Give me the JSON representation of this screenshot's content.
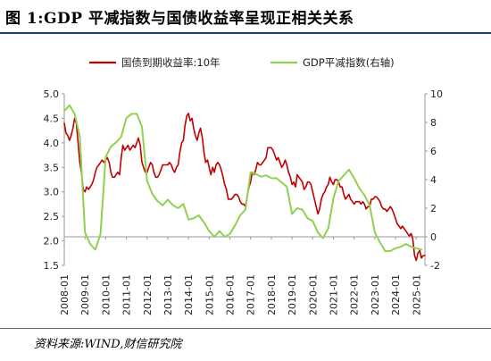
{
  "figure_title": "图 1:GDP 平减指数与国债收益率呈现正相关关系",
  "source_note": "资料来源:WIND,财信研究院",
  "colors": {
    "bond": "#c00000",
    "gdp": "#92d050",
    "rule": "#1f3b73"
  },
  "chart_data": {
    "type": "line",
    "title": "",
    "xlabel": "",
    "ylabel": "",
    "legend": {
      "placement": "top"
    },
    "grid": false,
    "x_ticks": [
      "2008-01",
      "2009-01",
      "2010-01",
      "2011-01",
      "2012-01",
      "2013-01",
      "2014-01",
      "2015-01",
      "2016-01",
      "2017-01",
      "2018-01",
      "2019-01",
      "2020-01",
      "2021-01",
      "2022-01",
      "2023-01",
      "2024-01",
      "2025-01"
    ],
    "y_left": {
      "range": [
        1.5,
        5.0
      ],
      "ticks": [
        "1.5",
        "2.0",
        "2.5",
        "3.0",
        "3.5",
        "4.0",
        "4.5",
        "5.0"
      ]
    },
    "y_right": {
      "range": [
        -2,
        10
      ],
      "ticks": [
        "-2",
        "0",
        "2",
        "4",
        "6",
        "8",
        "10"
      ]
    },
    "series": [
      {
        "name": "国债到期收益率:10年",
        "axis": "left",
        "color": "#c00000",
        "points": [
          [
            2008.0,
            4.4
          ],
          [
            2008.08,
            4.2
          ],
          [
            2008.17,
            4.15
          ],
          [
            2008.25,
            4.05
          ],
          [
            2008.33,
            4.15
          ],
          [
            2008.42,
            4.3
          ],
          [
            2008.5,
            4.5
          ],
          [
            2008.58,
            4.4
          ],
          [
            2008.67,
            4.0
          ],
          [
            2008.75,
            3.6
          ],
          [
            2008.83,
            3.4
          ],
          [
            2008.92,
            3.05
          ],
          [
            2009.0,
            3.0
          ],
          [
            2009.08,
            3.1
          ],
          [
            2009.17,
            3.05
          ],
          [
            2009.25,
            3.1
          ],
          [
            2009.33,
            3.15
          ],
          [
            2009.42,
            3.25
          ],
          [
            2009.5,
            3.4
          ],
          [
            2009.58,
            3.5
          ],
          [
            2009.67,
            3.55
          ],
          [
            2009.75,
            3.6
          ],
          [
            2009.83,
            3.65
          ],
          [
            2009.92,
            3.6
          ],
          [
            2010.0,
            3.65
          ],
          [
            2010.08,
            3.7
          ],
          [
            2010.17,
            3.6
          ],
          [
            2010.25,
            3.4
          ],
          [
            2010.33,
            3.3
          ],
          [
            2010.42,
            3.3
          ],
          [
            2010.5,
            3.35
          ],
          [
            2010.58,
            3.4
          ],
          [
            2010.67,
            3.35
          ],
          [
            2010.75,
            3.7
          ],
          [
            2010.83,
            3.95
          ],
          [
            2010.92,
            3.85
          ],
          [
            2011.0,
            3.9
          ],
          [
            2011.08,
            3.95
          ],
          [
            2011.17,
            3.85
          ],
          [
            2011.25,
            3.9
          ],
          [
            2011.33,
            3.95
          ],
          [
            2011.42,
            3.9
          ],
          [
            2011.5,
            4.0
          ],
          [
            2011.58,
            4.1
          ],
          [
            2011.67,
            3.95
          ],
          [
            2011.75,
            3.6
          ],
          [
            2011.83,
            3.5
          ],
          [
            2011.92,
            3.4
          ],
          [
            2012.0,
            3.4
          ],
          [
            2012.08,
            3.5
          ],
          [
            2012.17,
            3.6
          ],
          [
            2012.25,
            3.55
          ],
          [
            2012.33,
            3.4
          ],
          [
            2012.42,
            3.3
          ],
          [
            2012.5,
            3.3
          ],
          [
            2012.58,
            3.35
          ],
          [
            2012.67,
            3.45
          ],
          [
            2012.75,
            3.55
          ],
          [
            2012.83,
            3.55
          ],
          [
            2012.92,
            3.55
          ],
          [
            2013.0,
            3.55
          ],
          [
            2013.08,
            3.6
          ],
          [
            2013.17,
            3.55
          ],
          [
            2013.25,
            3.45
          ],
          [
            2013.33,
            3.4
          ],
          [
            2013.42,
            3.5
          ],
          [
            2013.5,
            3.55
          ],
          [
            2013.58,
            3.8
          ],
          [
            2013.67,
            4.0
          ],
          [
            2013.75,
            4.05
          ],
          [
            2013.83,
            4.35
          ],
          [
            2013.92,
            4.55
          ],
          [
            2014.0,
            4.6
          ],
          [
            2014.08,
            4.45
          ],
          [
            2014.17,
            4.5
          ],
          [
            2014.25,
            4.3
          ],
          [
            2014.33,
            4.15
          ],
          [
            2014.42,
            4.05
          ],
          [
            2014.5,
            4.2
          ],
          [
            2014.58,
            4.3
          ],
          [
            2014.67,
            4.1
          ],
          [
            2014.75,
            3.8
          ],
          [
            2014.83,
            3.6
          ],
          [
            2014.92,
            3.65
          ],
          [
            2015.0,
            3.5
          ],
          [
            2015.08,
            3.35
          ],
          [
            2015.17,
            3.5
          ],
          [
            2015.25,
            3.4
          ],
          [
            2015.33,
            3.55
          ],
          [
            2015.42,
            3.6
          ],
          [
            2015.5,
            3.55
          ],
          [
            2015.58,
            3.45
          ],
          [
            2015.67,
            3.3
          ],
          [
            2015.75,
            3.15
          ],
          [
            2015.83,
            3.05
          ],
          [
            2015.92,
            2.85
          ],
          [
            2016.0,
            2.85
          ],
          [
            2016.08,
            2.85
          ],
          [
            2016.17,
            2.9
          ],
          [
            2016.25,
            2.95
          ],
          [
            2016.33,
            2.95
          ],
          [
            2016.42,
            2.9
          ],
          [
            2016.5,
            2.8
          ],
          [
            2016.58,
            2.75
          ],
          [
            2016.67,
            2.75
          ],
          [
            2016.75,
            2.7
          ],
          [
            2016.83,
            2.9
          ],
          [
            2016.92,
            3.1
          ],
          [
            2017.0,
            3.2
          ],
          [
            2017.08,
            3.4
          ],
          [
            2017.17,
            3.35
          ],
          [
            2017.25,
            3.45
          ],
          [
            2017.33,
            3.6
          ],
          [
            2017.42,
            3.55
          ],
          [
            2017.5,
            3.55
          ],
          [
            2017.58,
            3.6
          ],
          [
            2017.67,
            3.65
          ],
          [
            2017.75,
            3.7
          ],
          [
            2017.83,
            3.9
          ],
          [
            2017.92,
            3.9
          ],
          [
            2018.0,
            3.9
          ],
          [
            2018.08,
            3.85
          ],
          [
            2018.17,
            3.75
          ],
          [
            2018.25,
            3.65
          ],
          [
            2018.33,
            3.7
          ],
          [
            2018.42,
            3.6
          ],
          [
            2018.5,
            3.5
          ],
          [
            2018.58,
            3.55
          ],
          [
            2018.67,
            3.65
          ],
          [
            2018.75,
            3.55
          ],
          [
            2018.83,
            3.4
          ],
          [
            2018.92,
            3.3
          ],
          [
            2019.0,
            3.15
          ],
          [
            2019.08,
            3.2
          ],
          [
            2019.17,
            3.1
          ],
          [
            2019.25,
            3.35
          ],
          [
            2019.33,
            3.3
          ],
          [
            2019.42,
            3.25
          ],
          [
            2019.5,
            3.2
          ],
          [
            2019.58,
            3.05
          ],
          [
            2019.67,
            3.1
          ],
          [
            2019.75,
            3.2
          ],
          [
            2019.83,
            3.2
          ],
          [
            2019.92,
            3.15
          ],
          [
            2020.0,
            3.0
          ],
          [
            2020.08,
            2.85
          ],
          [
            2020.17,
            2.7
          ],
          [
            2020.25,
            2.55
          ],
          [
            2020.33,
            2.65
          ],
          [
            2020.42,
            2.85
          ],
          [
            2020.5,
            2.95
          ],
          [
            2020.58,
            3.0
          ],
          [
            2020.67,
            3.1
          ],
          [
            2020.75,
            3.15
          ],
          [
            2020.83,
            3.3
          ],
          [
            2020.92,
            3.2
          ],
          [
            2021.0,
            3.15
          ],
          [
            2021.08,
            3.25
          ],
          [
            2021.17,
            3.25
          ],
          [
            2021.25,
            3.2
          ],
          [
            2021.33,
            3.1
          ],
          [
            2021.42,
            3.1
          ],
          [
            2021.5,
            2.95
          ],
          [
            2021.58,
            2.85
          ],
          [
            2021.67,
            2.9
          ],
          [
            2021.75,
            2.95
          ],
          [
            2021.83,
            2.85
          ],
          [
            2021.92,
            2.8
          ],
          [
            2022.0,
            2.75
          ],
          [
            2022.08,
            2.8
          ],
          [
            2022.17,
            2.8
          ],
          [
            2022.25,
            2.8
          ],
          [
            2022.33,
            2.75
          ],
          [
            2022.42,
            2.8
          ],
          [
            2022.5,
            2.75
          ],
          [
            2022.58,
            2.65
          ],
          [
            2022.67,
            2.7
          ],
          [
            2022.75,
            2.7
          ],
          [
            2022.83,
            2.85
          ],
          [
            2022.92,
            2.85
          ],
          [
            2023.0,
            2.9
          ],
          [
            2023.08,
            2.9
          ],
          [
            2023.17,
            2.85
          ],
          [
            2023.25,
            2.8
          ],
          [
            2023.33,
            2.7
          ],
          [
            2023.42,
            2.65
          ],
          [
            2023.5,
            2.65
          ],
          [
            2023.58,
            2.6
          ],
          [
            2023.67,
            2.65
          ],
          [
            2023.75,
            2.7
          ],
          [
            2023.83,
            2.65
          ],
          [
            2023.92,
            2.55
          ],
          [
            2024.0,
            2.45
          ],
          [
            2024.08,
            2.35
          ],
          [
            2024.17,
            2.3
          ],
          [
            2024.25,
            2.25
          ],
          [
            2024.33,
            2.3
          ],
          [
            2024.42,
            2.25
          ],
          [
            2024.5,
            2.2
          ],
          [
            2024.58,
            2.15
          ],
          [
            2024.67,
            2.1
          ],
          [
            2024.75,
            2.15
          ],
          [
            2024.83,
            2.05
          ],
          [
            2024.92,
            1.7
          ],
          [
            2025.0,
            1.6
          ],
          [
            2025.08,
            1.75
          ],
          [
            2025.17,
            1.8
          ],
          [
            2025.25,
            1.65
          ],
          [
            2025.33,
            1.7
          ],
          [
            2025.42,
            1.7
          ]
        ]
      },
      {
        "name": "GDP平减指数(右轴)",
        "axis": "right",
        "color": "#92d050",
        "points": [
          [
            2008.0,
            8.8
          ],
          [
            2008.25,
            9.2
          ],
          [
            2008.5,
            8.6
          ],
          [
            2008.75,
            7.0
          ],
          [
            2009.0,
            0.3
          ],
          [
            2009.25,
            -0.5
          ],
          [
            2009.5,
            -0.9
          ],
          [
            2009.75,
            0.2
          ],
          [
            2010.0,
            5.6
          ],
          [
            2010.25,
            6.3
          ],
          [
            2010.5,
            6.6
          ],
          [
            2010.75,
            7.0
          ],
          [
            2011.0,
            8.3
          ],
          [
            2011.25,
            8.6
          ],
          [
            2011.5,
            8.6
          ],
          [
            2011.75,
            7.7
          ],
          [
            2012.0,
            3.9
          ],
          [
            2012.25,
            3.0
          ],
          [
            2012.5,
            2.5
          ],
          [
            2012.75,
            2.2
          ],
          [
            2013.0,
            2.6
          ],
          [
            2013.25,
            2.2
          ],
          [
            2013.5,
            2.0
          ],
          [
            2013.75,
            2.3
          ],
          [
            2014.0,
            1.2
          ],
          [
            2014.25,
            1.3
          ],
          [
            2014.5,
            1.5
          ],
          [
            2014.75,
            1.0
          ],
          [
            2015.0,
            0.4
          ],
          [
            2015.25,
            0.0
          ],
          [
            2015.5,
            0.4
          ],
          [
            2015.75,
            0.0
          ],
          [
            2016.0,
            0.2
          ],
          [
            2016.25,
            0.8
          ],
          [
            2016.5,
            1.5
          ],
          [
            2016.75,
            1.9
          ],
          [
            2017.0,
            4.5
          ],
          [
            2017.25,
            4.4
          ],
          [
            2017.5,
            4.2
          ],
          [
            2017.75,
            4.3
          ],
          [
            2018.0,
            4.1
          ],
          [
            2018.25,
            4.1
          ],
          [
            2018.5,
            3.8
          ],
          [
            2018.75,
            3.5
          ],
          [
            2019.0,
            1.6
          ],
          [
            2019.25,
            2.0
          ],
          [
            2019.5,
            1.9
          ],
          [
            2019.75,
            1.3
          ],
          [
            2020.0,
            1.1
          ],
          [
            2020.25,
            0.3
          ],
          [
            2020.5,
            -0.1
          ],
          [
            2020.75,
            0.6
          ],
          [
            2021.0,
            2.7
          ],
          [
            2021.25,
            3.9
          ],
          [
            2021.5,
            4.3
          ],
          [
            2021.75,
            4.7
          ],
          [
            2022.0,
            4.1
          ],
          [
            2022.25,
            3.4
          ],
          [
            2022.5,
            2.9
          ],
          [
            2022.75,
            2.2
          ],
          [
            2023.0,
            0.3
          ],
          [
            2023.25,
            -0.4
          ],
          [
            2023.5,
            -1.0
          ],
          [
            2023.75,
            -1.0
          ],
          [
            2024.0,
            -0.8
          ],
          [
            2024.25,
            -0.7
          ],
          [
            2024.5,
            -0.5
          ],
          [
            2024.75,
            -0.7
          ],
          [
            2025.0,
            -0.8
          ],
          [
            2025.25,
            -0.9
          ]
        ]
      }
    ]
  }
}
